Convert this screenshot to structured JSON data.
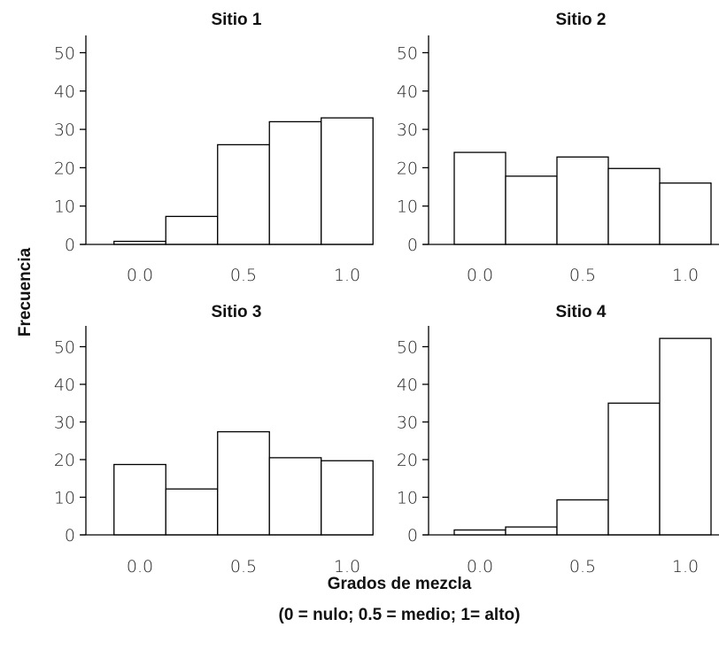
{
  "chart_data": [
    {
      "type": "bar",
      "title": "Sitio 1",
      "x_ticks": [
        "0.0",
        "0.5",
        "1.0"
      ],
      "y_ticks": [
        "0",
        "10",
        "20",
        "30",
        "40",
        "50"
      ],
      "bin_centers": [
        0.0,
        0.25,
        0.5,
        0.75,
        1.0
      ],
      "values": [
        0.8,
        7.3,
        26,
        32,
        33
      ],
      "ylim": [
        0,
        55
      ]
    },
    {
      "type": "bar",
      "title": "Sitio 2",
      "x_ticks": [
        "0.0",
        "0.5",
        "1.0"
      ],
      "y_ticks": [
        "0",
        "10",
        "20",
        "30",
        "40",
        "50"
      ],
      "bin_centers": [
        0.0,
        0.25,
        0.5,
        0.75,
        1.0
      ],
      "values": [
        24,
        17.8,
        22.8,
        19.8,
        16
      ],
      "ylim": [
        0,
        55
      ]
    },
    {
      "type": "bar",
      "title": "Sitio 3",
      "x_ticks": [
        "0.0",
        "0.5",
        "1.0"
      ],
      "y_ticks": [
        "0",
        "10",
        "20",
        "30",
        "40",
        "50"
      ],
      "bin_centers": [
        0.0,
        0.25,
        0.5,
        0.75,
        1.0
      ],
      "values": [
        18.7,
        12.2,
        27.4,
        20.5,
        19.7
      ],
      "ylim": [
        0,
        55
      ]
    },
    {
      "type": "bar",
      "title": "Sitio 4",
      "x_ticks": [
        "0.0",
        "0.5",
        "1.0"
      ],
      "y_ticks": [
        "0",
        "10",
        "20",
        "30",
        "40",
        "50"
      ],
      "bin_centers": [
        0.0,
        0.25,
        0.5,
        0.75,
        1.0
      ],
      "values": [
        1.3,
        2.1,
        9.3,
        35,
        52.2
      ],
      "ylim": [
        0,
        55
      ]
    }
  ],
  "ylabel": "Frecuencia",
  "xlabel": "Grados de mezcla",
  "xlabel_note": "(0 = nulo; 0.5 = medio; 1= alto)"
}
